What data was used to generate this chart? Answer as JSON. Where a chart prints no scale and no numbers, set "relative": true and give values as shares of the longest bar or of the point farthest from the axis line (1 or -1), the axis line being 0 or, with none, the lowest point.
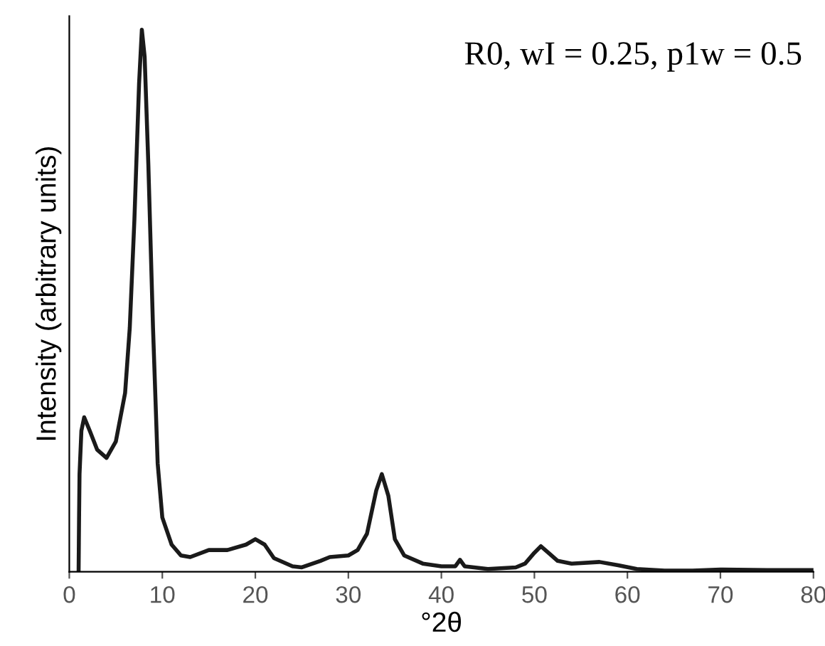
{
  "chart_data": {
    "type": "line",
    "relative": true,
    "xlabel": "°2θ",
    "ylabel": "Intensity (arbitrary units)",
    "xlim": [
      0,
      80
    ],
    "xticks": [
      0,
      10,
      20,
      30,
      40,
      50,
      60,
      70,
      80
    ],
    "annotations": [
      "R0, wI = 0.25, p1w = 0.5"
    ],
    "grid": false,
    "legend": false,
    "marker": "none",
    "line_style": "solid",
    "series": [
      {
        "color": "#1a1a1a",
        "x": [
          1.0,
          1.05,
          1.1,
          1.3,
          1.6,
          2.2,
          3,
          4,
          5,
          6,
          6.5,
          7,
          7.5,
          7.8,
          8.1,
          8.5,
          9,
          9.5,
          10,
          11,
          12,
          13,
          15,
          17,
          19,
          20,
          21,
          22,
          24,
          25,
          27,
          28,
          30,
          31,
          32,
          33,
          33.6,
          34.3,
          35,
          36,
          38,
          40,
          41.5,
          42,
          42.5,
          45,
          48,
          49,
          50,
          50.7,
          51.5,
          52.5,
          54,
          57,
          59,
          61,
          64,
          67,
          70,
          75,
          80
        ],
        "values": [
          0,
          0.1,
          0.18,
          0.26,
          0.285,
          0.26,
          0.225,
          0.21,
          0.24,
          0.33,
          0.45,
          0.65,
          0.9,
          1.0,
          0.95,
          0.75,
          0.45,
          0.2,
          0.1,
          0.05,
          0.03,
          0.027,
          0.04,
          0.04,
          0.05,
          0.06,
          0.05,
          0.025,
          0.01,
          0.008,
          0.02,
          0.027,
          0.03,
          0.04,
          0.07,
          0.15,
          0.18,
          0.14,
          0.06,
          0.03,
          0.015,
          0.01,
          0.01,
          0.022,
          0.01,
          0.005,
          0.008,
          0.015,
          0.035,
          0.047,
          0.035,
          0.02,
          0.015,
          0.018,
          0.012,
          0.005,
          0.002,
          0.002,
          0.004,
          0.003,
          0.003
        ]
      }
    ]
  }
}
